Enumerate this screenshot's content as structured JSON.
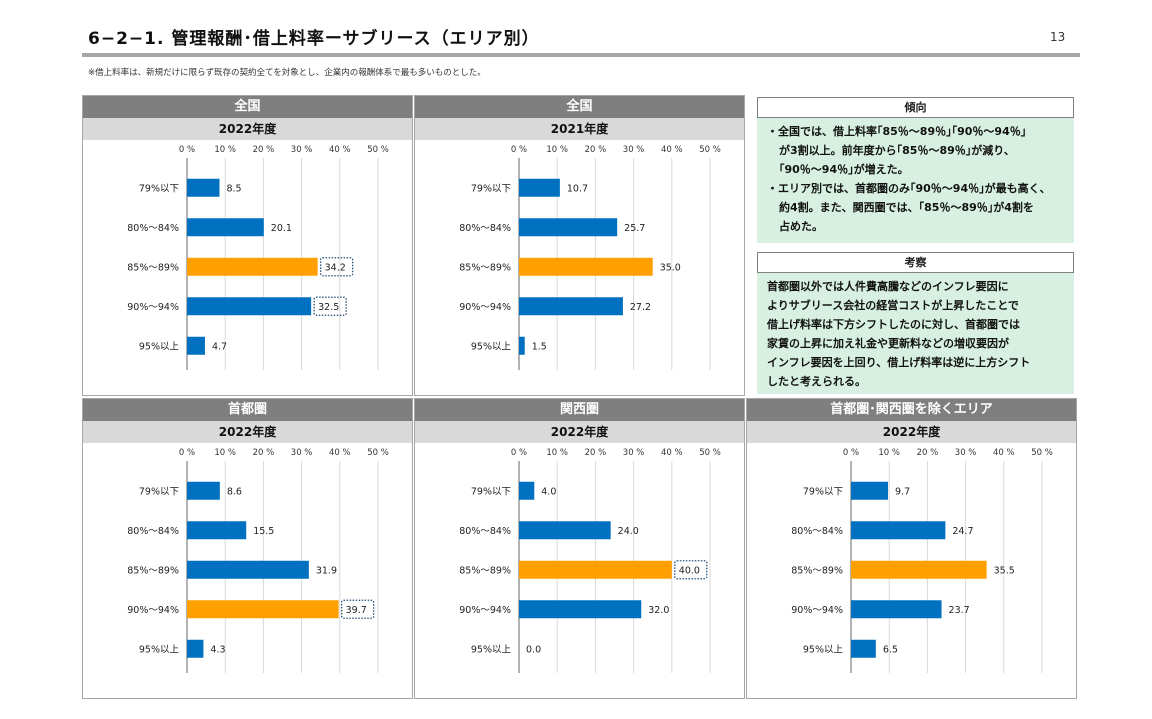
{
  "header": {
    "title": "6−2−1. 管理報酬･借上料率ーサブリース（エリア別）",
    "page_number": "13",
    "note": "※借上料率は、新規だけに限らず既存の契約全てを対象とし、企業内の報酬体系で最も多いものとした。"
  },
  "colors": {
    "normal": "#0070c0",
    "highlight": "#ffa000",
    "dotted_box": "#1f4e79"
  },
  "chart_data": [
    {
      "type": "bar",
      "orientation": "horizontal",
      "panel_title": "全国",
      "subtitle": "2022年度",
      "categories": [
        "79%以下",
        "80%～84%",
        "85%～89%",
        "90%～94%",
        "95%以上"
      ],
      "values": [
        8.5,
        20.1,
        34.2,
        32.5,
        4.7
      ],
      "value_labels": [
        "8.5",
        "20.1",
        "34.2",
        "32.5",
        "4.7"
      ],
      "highlight": [
        2
      ],
      "boxed": [
        2,
        3
      ],
      "xticks": [
        "0 %",
        "10 %",
        "20 %",
        "30 %",
        "40 %",
        "50 %"
      ],
      "xlim": [
        0,
        50
      ],
      "grid": true
    },
    {
      "type": "bar",
      "orientation": "horizontal",
      "panel_title": "全国",
      "subtitle": "2021年度",
      "categories": [
        "79%以下",
        "80%～84%",
        "85%～89%",
        "90%～94%",
        "95%以上"
      ],
      "values": [
        10.7,
        25.7,
        35.0,
        27.2,
        1.5
      ],
      "value_labels": [
        "10.7",
        "25.7",
        "35.0",
        "27.2",
        "1.5"
      ],
      "highlight": [
        2
      ],
      "boxed": [],
      "xticks": [
        "0 %",
        "10 %",
        "20 %",
        "30 %",
        "40 %",
        "50 %"
      ],
      "xlim": [
        0,
        50
      ],
      "grid": true
    },
    {
      "type": "bar",
      "orientation": "horizontal",
      "panel_title": "首都圏",
      "subtitle": "2022年度",
      "categories": [
        "79%以下",
        "80%～84%",
        "85%～89%",
        "90%～94%",
        "95%以上"
      ],
      "values": [
        8.6,
        15.5,
        31.9,
        39.7,
        4.3
      ],
      "value_labels": [
        "8.6",
        "15.5",
        "31.9",
        "39.7",
        "4.3"
      ],
      "highlight": [
        3
      ],
      "boxed": [
        3
      ],
      "xticks": [
        "0 %",
        "10 %",
        "20 %",
        "30 %",
        "40 %",
        "50 %"
      ],
      "xlim": [
        0,
        50
      ],
      "grid": true
    },
    {
      "type": "bar",
      "orientation": "horizontal",
      "panel_title": "関西圏",
      "subtitle": "2022年度",
      "categories": [
        "79%以下",
        "80%～84%",
        "85%～89%",
        "90%～94%",
        "95%以上"
      ],
      "values": [
        4.0,
        24.0,
        40.0,
        32.0,
        0.0
      ],
      "value_labels": [
        "4.0",
        "24.0",
        "40.0",
        "32.0",
        "0.0"
      ],
      "highlight": [
        2
      ],
      "boxed": [
        2
      ],
      "xticks": [
        "0 %",
        "10 %",
        "20 %",
        "30 %",
        "40 %",
        "50 %"
      ],
      "xlim": [
        0,
        50
      ],
      "grid": true
    },
    {
      "type": "bar",
      "orientation": "horizontal",
      "panel_title": "首都圏･関西圏を除くエリア",
      "subtitle": "2022年度",
      "categories": [
        "79%以下",
        "80%～84%",
        "85%～89%",
        "90%～94%",
        "95%以上"
      ],
      "values": [
        9.7,
        24.7,
        35.5,
        23.7,
        6.5
      ],
      "value_labels": [
        "9.7",
        "24.7",
        "35.5",
        "23.7",
        "6.5"
      ],
      "highlight": [
        2
      ],
      "boxed": [],
      "xticks": [
        "0 %",
        "10 %",
        "20 %",
        "30 %",
        "40 %",
        "50 %"
      ],
      "xlim": [
        0,
        50
      ],
      "grid": true
    }
  ],
  "trend": {
    "heading": "傾向",
    "lines": [
      {
        "text": "・全国では、借上料率｢85％～89％｣｢90％～94％｣",
        "indent": false
      },
      {
        "text": "が3割以上。前年度から｢85％～89％｣が減り、",
        "indent": true
      },
      {
        "text": "｢90％～94％｣が増えた。",
        "indent": true
      },
      {
        "text": "・エリア別では、首都圏のみ｢90％～94％｣が最も高く、",
        "indent": false
      },
      {
        "text": "約4割。また、関西圏では、｢85％～89％｣が4割を",
        "indent": true
      },
      {
        "text": "占めた。",
        "indent": true
      }
    ]
  },
  "consideration": {
    "heading": "考察",
    "lines": [
      {
        "text": "首都圏以外では人件費高騰などのインフレ要因に",
        "indent": false
      },
      {
        "text": "よりサブリース会社の経営コストが上昇したことで",
        "indent": false
      },
      {
        "text": "借上げ料率は下方シフトしたのに対し、首都圏では",
        "indent": false
      },
      {
        "text": "家賃の上昇に加え礼金や更新料などの増収要因が",
        "indent": false
      },
      {
        "text": "インフレ要因を上回り、借上げ料率は逆に上方シフト",
        "indent": false
      },
      {
        "text": "したと考えられる。",
        "indent": false
      }
    ]
  }
}
